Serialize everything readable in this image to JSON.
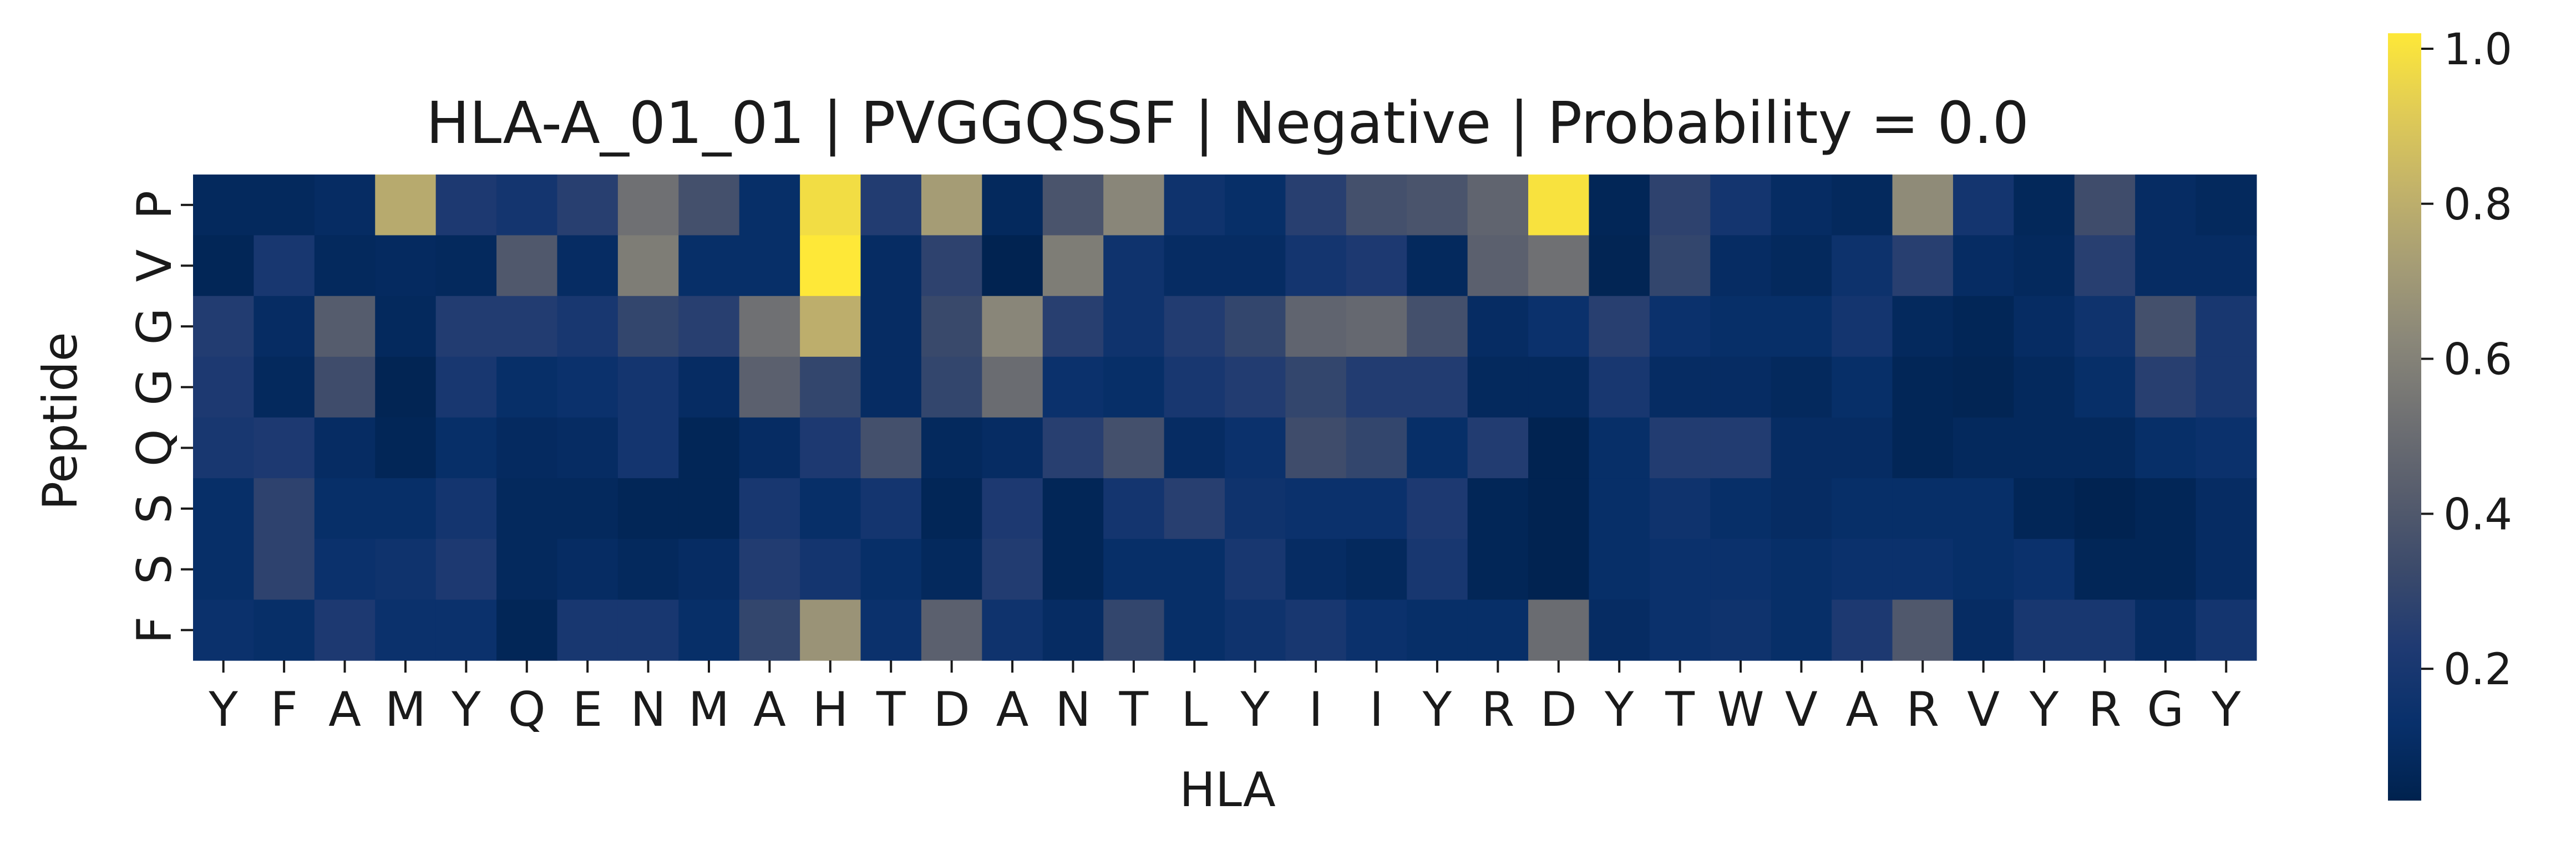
{
  "chart_data": {
    "type": "heatmap",
    "title": "HLA-A_01_01 | PVGGQSSF | Negative | Probability = 0.0",
    "xlabel": "HLA",
    "ylabel": "Peptide",
    "x_categories": [
      "Y",
      "F",
      "A",
      "M",
      "Y",
      "Q",
      "E",
      "N",
      "M",
      "A",
      "H",
      "T",
      "D",
      "A",
      "N",
      "T",
      "L",
      "Y",
      "I",
      "I",
      "Y",
      "R",
      "D",
      "Y",
      "T",
      "W",
      "V",
      "A",
      "R",
      "V",
      "Y",
      "R",
      "G",
      "Y"
    ],
    "y_categories": [
      "P",
      "V",
      "G",
      "G",
      "Q",
      "S",
      "S",
      "F"
    ],
    "values": [
      [
        0.08,
        0.08,
        0.1,
        0.78,
        0.22,
        0.18,
        0.26,
        0.52,
        0.36,
        0.12,
        0.98,
        0.24,
        0.72,
        0.08,
        0.38,
        0.62,
        0.16,
        0.12,
        0.26,
        0.36,
        0.38,
        0.46,
        1.0,
        0.06,
        0.28,
        0.18,
        0.1,
        0.08,
        0.64,
        0.18,
        0.07,
        0.34,
        0.1,
        0.08
      ],
      [
        0.06,
        0.2,
        0.08,
        0.09,
        0.08,
        0.4,
        0.1,
        0.58,
        0.12,
        0.12,
        1.02,
        0.1,
        0.28,
        0.04,
        0.58,
        0.16,
        0.1,
        0.1,
        0.18,
        0.22,
        0.08,
        0.44,
        0.52,
        0.05,
        0.3,
        0.1,
        0.08,
        0.15,
        0.26,
        0.1,
        0.08,
        0.26,
        0.1,
        0.1
      ],
      [
        0.24,
        0.1,
        0.42,
        0.08,
        0.24,
        0.24,
        0.2,
        0.3,
        0.26,
        0.52,
        0.8,
        0.1,
        0.32,
        0.62,
        0.26,
        0.16,
        0.24,
        0.3,
        0.46,
        0.48,
        0.36,
        0.1,
        0.14,
        0.26,
        0.14,
        0.12,
        0.12,
        0.18,
        0.08,
        0.06,
        0.1,
        0.16,
        0.36,
        0.2
      ],
      [
        0.22,
        0.08,
        0.34,
        0.05,
        0.2,
        0.12,
        0.14,
        0.18,
        0.1,
        0.44,
        0.3,
        0.1,
        0.3,
        0.5,
        0.14,
        0.12,
        0.2,
        0.24,
        0.3,
        0.24,
        0.24,
        0.08,
        0.08,
        0.2,
        0.1,
        0.1,
        0.08,
        0.12,
        0.06,
        0.05,
        0.08,
        0.12,
        0.26,
        0.2
      ],
      [
        0.2,
        0.22,
        0.1,
        0.06,
        0.12,
        0.09,
        0.1,
        0.18,
        0.06,
        0.1,
        0.22,
        0.36,
        0.08,
        0.1,
        0.26,
        0.36,
        0.1,
        0.14,
        0.34,
        0.3,
        0.12,
        0.24,
        0.04,
        0.12,
        0.24,
        0.24,
        0.1,
        0.1,
        0.06,
        0.08,
        0.08,
        0.08,
        0.12,
        0.14
      ],
      [
        0.12,
        0.28,
        0.12,
        0.12,
        0.18,
        0.08,
        0.08,
        0.06,
        0.06,
        0.2,
        0.12,
        0.18,
        0.06,
        0.22,
        0.06,
        0.18,
        0.26,
        0.16,
        0.14,
        0.14,
        0.22,
        0.06,
        0.04,
        0.12,
        0.16,
        0.12,
        0.1,
        0.12,
        0.12,
        0.12,
        0.06,
        0.04,
        0.06,
        0.1
      ],
      [
        0.12,
        0.28,
        0.14,
        0.16,
        0.22,
        0.08,
        0.1,
        0.08,
        0.1,
        0.24,
        0.18,
        0.12,
        0.08,
        0.24,
        0.06,
        0.12,
        0.12,
        0.2,
        0.1,
        0.08,
        0.2,
        0.06,
        0.04,
        0.12,
        0.14,
        0.14,
        0.12,
        0.14,
        0.14,
        0.12,
        0.14,
        0.06,
        0.06,
        0.1
      ],
      [
        0.14,
        0.12,
        0.22,
        0.14,
        0.14,
        0.06,
        0.2,
        0.2,
        0.12,
        0.3,
        0.68,
        0.14,
        0.44,
        0.16,
        0.1,
        0.3,
        0.12,
        0.16,
        0.2,
        0.14,
        0.12,
        0.12,
        0.5,
        0.1,
        0.14,
        0.16,
        0.12,
        0.22,
        0.4,
        0.1,
        0.2,
        0.2,
        0.1,
        0.18
      ]
    ],
    "vmin": 0.03,
    "vmax": 1.02,
    "colormap": "cividis",
    "colorbar_ticks": [
      0.2,
      0.4,
      0.6,
      0.8,
      1.0
    ],
    "colorbar_tick_labels": [
      "0.2",
      "0.4",
      "0.6",
      "0.8",
      "1.0"
    ],
    "grid": false
  }
}
